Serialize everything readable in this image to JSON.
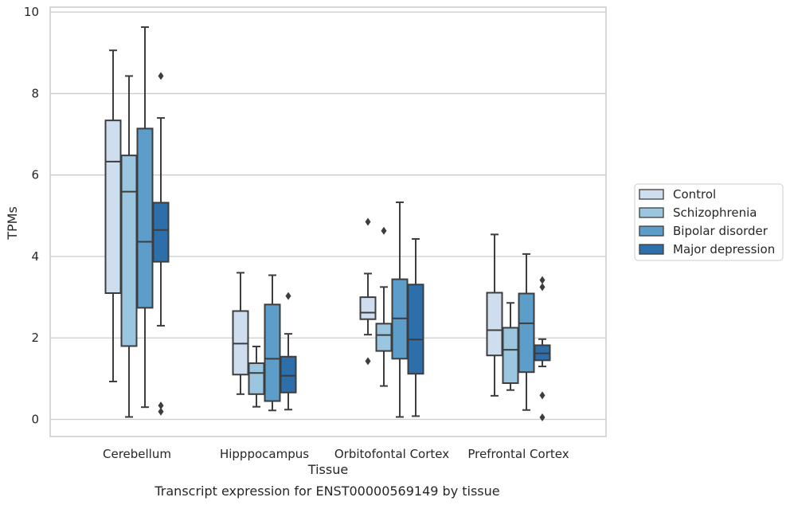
{
  "chart_data": {
    "type": "box",
    "xlabel": "Tissue",
    "ylabel": "TPMs",
    "caption": "Transcript expression for ENST00000569149 by tissue",
    "ylim": [
      -0.42,
      10.12
    ],
    "yticks": [
      0,
      2,
      4,
      6,
      8,
      10
    ],
    "grid": "horizontal",
    "legend_position": "right",
    "categories": [
      "Cerebellum",
      "Hipppocampus",
      "Orbitofontal Cortex",
      "Prefrontal Cortex"
    ],
    "series": [
      {
        "name": "Control",
        "color": "#cfdeef",
        "boxes": [
          {
            "whislo": 0.93,
            "q1": 3.1,
            "med": 6.33,
            "q3": 7.34,
            "whishi": 9.06,
            "fliers": []
          },
          {
            "whislo": 0.62,
            "q1": 1.1,
            "med": 1.86,
            "q3": 2.66,
            "whishi": 3.6,
            "fliers": []
          },
          {
            "whislo": 2.08,
            "q1": 2.46,
            "med": 2.62,
            "q3": 3.0,
            "whishi": 3.58,
            "fliers": [
              4.85,
              1.43
            ]
          },
          {
            "whislo": 0.58,
            "q1": 1.57,
            "med": 2.19,
            "q3": 3.11,
            "whishi": 4.54,
            "fliers": []
          }
        ]
      },
      {
        "name": "Schizophrenia",
        "color": "#9ac6df",
        "boxes": [
          {
            "whislo": 0.06,
            "q1": 1.8,
            "med": 5.59,
            "q3": 6.48,
            "whishi": 8.43,
            "fliers": []
          },
          {
            "whislo": 0.31,
            "q1": 0.62,
            "med": 1.14,
            "q3": 1.38,
            "whishi": 1.79,
            "fliers": []
          },
          {
            "whislo": 0.82,
            "q1": 1.68,
            "med": 2.07,
            "q3": 2.35,
            "whishi": 3.25,
            "fliers": [
              4.63
            ]
          },
          {
            "whislo": 0.72,
            "q1": 0.89,
            "med": 1.71,
            "q3": 2.25,
            "whishi": 2.86,
            "fliers": []
          }
        ]
      },
      {
        "name": "Bipolar disorder",
        "color": "#5d9dc9",
        "boxes": [
          {
            "whislo": 0.3,
            "q1": 2.74,
            "med": 4.36,
            "q3": 7.14,
            "whishi": 9.63,
            "fliers": []
          },
          {
            "whislo": 0.22,
            "q1": 0.45,
            "med": 1.49,
            "q3": 2.82,
            "whishi": 3.54,
            "fliers": []
          },
          {
            "whislo": 0.06,
            "q1": 1.49,
            "med": 2.48,
            "q3": 3.44,
            "whishi": 5.33,
            "fliers": []
          },
          {
            "whislo": 0.23,
            "q1": 1.16,
            "med": 2.36,
            "q3": 3.09,
            "whishi": 4.06,
            "fliers": []
          }
        ]
      },
      {
        "name": "Major depression",
        "color": "#2c6fab",
        "boxes": [
          {
            "whislo": 2.3,
            "q1": 3.87,
            "med": 4.65,
            "q3": 5.32,
            "whishi": 7.4,
            "fliers": [
              8.43,
              0.34,
              0.19
            ]
          },
          {
            "whislo": 0.24,
            "q1": 0.66,
            "med": 1.07,
            "q3": 1.54,
            "whishi": 2.1,
            "fliers": [
              3.03
            ]
          },
          {
            "whislo": 0.08,
            "q1": 1.12,
            "med": 1.96,
            "q3": 3.31,
            "whishi": 4.43,
            "fliers": []
          },
          {
            "whislo": 1.3,
            "q1": 1.45,
            "med": 1.62,
            "q3": 1.82,
            "whishi": 1.97,
            "fliers": [
              3.42,
              3.25,
              0.59,
              0.05
            ]
          }
        ]
      }
    ]
  }
}
